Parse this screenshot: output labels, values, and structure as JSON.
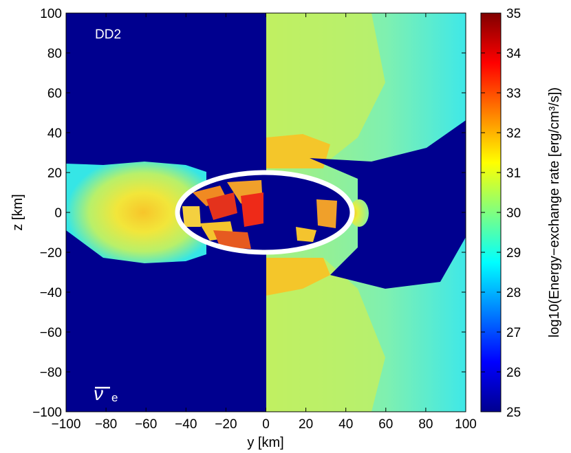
{
  "chart_data": {
    "type": "heatmap",
    "xlabel": "y [km]",
    "ylabel": "z [km]",
    "xlim": [
      -100,
      100
    ],
    "ylim": [
      -100,
      100
    ],
    "x_ticks": [
      -100,
      -80,
      -60,
      -40,
      -20,
      0,
      20,
      40,
      60,
      80,
      100
    ],
    "y_ticks": [
      -100,
      -80,
      -60,
      -40,
      -20,
      0,
      20,
      40,
      60,
      80,
      100
    ],
    "x_tick_labels": [
      "−100",
      "−80",
      "−60",
      "−40",
      "−20",
      "0",
      "20",
      "40",
      "60",
      "80",
      "100"
    ],
    "y_tick_labels": [
      "−100",
      "−80",
      "−60",
      "−40",
      "−20",
      "0",
      "20",
      "40",
      "60",
      "80",
      "100"
    ],
    "colorbar": {
      "label": "log10(Energy−exchange rate [erg/cm³/s])",
      "range": [
        25,
        35
      ],
      "ticks": [
        25,
        26,
        27,
        28,
        29,
        30,
        31,
        32,
        33,
        34,
        35
      ],
      "colormap": "jet"
    },
    "annotations": {
      "model": "DD2",
      "species_symbol": "ν",
      "species_subscript": "e"
    },
    "contour": {
      "shape": "ellipse",
      "color": "#ffffff",
      "center": [
        0,
        0
      ],
      "semi_axis_y": 44,
      "semi_axis_z": 20
    },
    "left_panel_regions": [
      {
        "region": "lobe",
        "z_center": 0,
        "y_extent": [
          -100,
          -40
        ],
        "typical_value": 30.5
      },
      {
        "region": "core",
        "y_extent": [
          -40,
          0
        ],
        "z_extent": [
          -20,
          20
        ],
        "typical_value": 33
      }
    ],
    "right_panel_regions": [
      {
        "region": "polar",
        "typical_value": 30,
        "background_value": 29
      },
      {
        "region": "near_axis",
        "z_extent": [
          20,
          40
        ],
        "typical_value": 31.5
      }
    ]
  }
}
